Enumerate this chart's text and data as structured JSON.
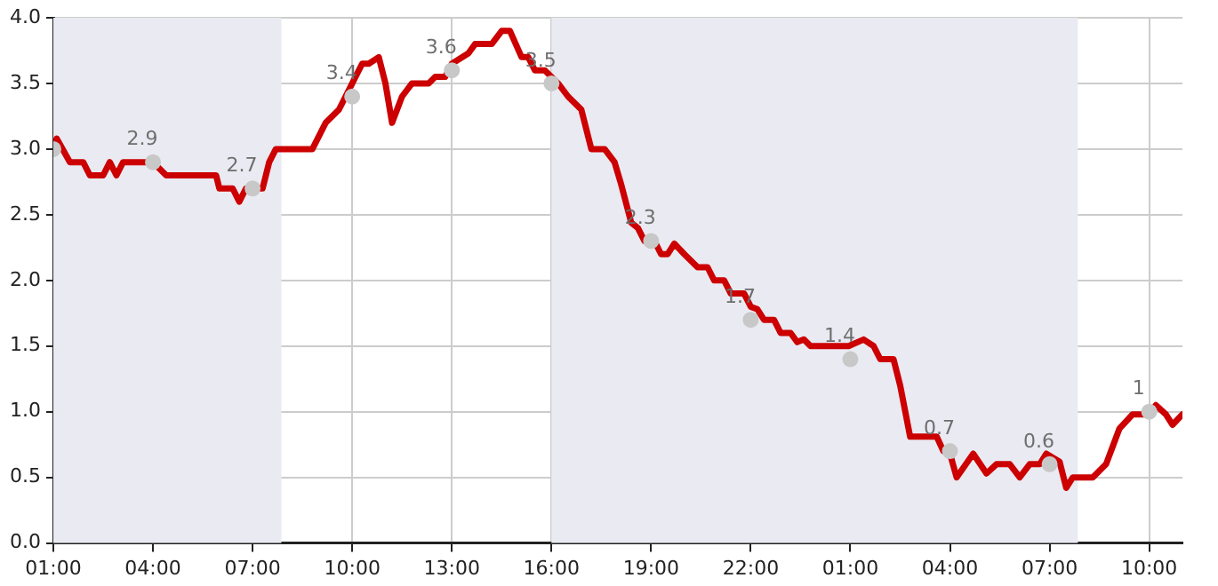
{
  "chart_data": {
    "type": "line",
    "xlim": [
      "--01-01T01:00",
      "--01-02T11:00"
    ],
    "xticks": [
      {
        "value": "--01-01T01:00",
        "label": "01:00"
      },
      {
        "value": "--01-01T04:00",
        "label": "04:00"
      },
      {
        "value": "--01-01T07:00",
        "label": "07:00"
      },
      {
        "value": "--01-01T10:00",
        "label": "10:00"
      },
      {
        "value": "--01-01T13:00",
        "label": "13:00"
      },
      {
        "value": "--01-01T16:00",
        "label": "16:00"
      },
      {
        "value": "--01-01T19:00",
        "label": "19:00"
      },
      {
        "value": "--01-01T22:00",
        "label": "22:00"
      },
      {
        "value": "--01-02T01:00",
        "label": "01:00"
      },
      {
        "value": "--01-02T04:00",
        "label": "04:00"
      },
      {
        "value": "--01-02T07:00",
        "label": "07:00"
      },
      {
        "value": "--01-02T10:00",
        "label": "10:00"
      }
    ],
    "ylim": [
      0,
      4
    ],
    "yticks": [
      {
        "value": 0,
        "label": "0.0"
      },
      0.5,
      {
        "value": 1,
        "label": "1.0"
      },
      1.5,
      {
        "value": 2,
        "label": "2.0"
      },
      2.5,
      {
        "value": 3,
        "label": "3.0"
      },
      3.5,
      {
        "value": 4,
        "label": "4.0"
      }
    ],
    "grid": true,
    "bands": [
      {
        "axis": "x",
        "from": "--01-01T01:00",
        "to": "--01-01T07:52",
        "color": "#eaeaf2"
      },
      {
        "axis": "x",
        "from": "--01-01T16:00",
        "to": "--01-02T07:51",
        "color": "#eaeaf2"
      }
    ],
    "series": [
      {
        "color": "#cc0000",
        "line_style": "solid",
        "x": [
          "--01-01T01:00",
          "--01-01T01:06",
          "--01-01T01:30",
          "--01-01T01:54",
          "--01-01T02:06",
          "--01-01T02:30",
          "--01-01T02:42",
          "--01-01T02:54",
          "--01-01T03:06",
          "--01-01T04:00",
          "--01-01T04:24",
          "--01-01T05:54",
          "--01-01T06:00",
          "--01-01T06:24",
          "--01-01T06:36",
          "--01-01T06:48",
          "--01-01T07:18",
          "--01-01T07:30",
          "--01-01T07:42",
          "--01-01T08:48",
          "--01-01T09:12",
          "--01-01T09:36",
          "--01-01T10:00",
          "--01-01T10:18",
          "--01-01T10:30",
          "--01-01T10:48",
          "--01-01T11:00",
          "--01-01T11:12",
          "--01-01T11:30",
          "--01-01T11:48",
          "--01-01T12:18",
          "--01-01T12:30",
          "--01-01T12:48",
          "--01-01T13:00",
          "--01-01T13:30",
          "--01-01T13:42",
          "--01-01T14:12",
          "--01-01T14:30",
          "--01-01T14:45",
          "--01-01T15:06",
          "--01-01T15:18",
          "--01-01T15:30",
          "--01-01T15:48",
          "--01-01T16:12",
          "--01-01T16:30",
          "--01-01T16:54",
          "--01-01T17:12",
          "--01-01T17:36",
          "--01-01T17:54",
          "--01-01T18:06",
          "--01-01T18:24",
          "--01-01T18:36",
          "--01-01T18:48",
          "--01-01T19:06",
          "--01-01T19:18",
          "--01-01T19:30",
          "--01-01T19:42",
          "--01-01T20:00",
          "--01-01T20:24",
          "--01-01T20:42",
          "--01-01T20:54",
          "--01-01T21:12",
          "--01-01T21:24",
          "--01-01T21:48",
          "--01-01T22:00",
          "--01-01T22:12",
          "--01-01T22:24",
          "--01-01T22:42",
          "--01-01T22:54",
          "--01-01T23:12",
          "--01-01T23:24",
          "--01-01T23:36",
          "--01-01T23:48",
          "--01-02T00:57",
          "--01-02T01:24",
          "--01-02T01:42",
          "--01-02T01:54",
          "--01-02T02:18",
          "--01-02T02:30",
          "--01-02T02:48",
          "--01-02T03:36",
          "--01-02T03:48",
          "--01-02T04:00",
          "--01-02T04:12",
          "--01-02T04:42",
          "--01-02T05:06",
          "--01-02T05:24",
          "--01-02T05:48",
          "--01-02T06:06",
          "--01-02T06:24",
          "--01-02T06:42",
          "--01-02T06:54",
          "--01-02T07:18",
          "--01-02T07:30",
          "--01-02T07:42",
          "--01-02T08:18",
          "--01-02T08:42",
          "--01-02T09:06",
          "--01-02T09:30",
          "--01-02T10:00",
          "--01-02T10:12",
          "--01-02T10:30",
          "--01-02T10:42",
          "--01-02T11:00"
        ],
        "values": [
          3.0,
          3.08,
          2.9,
          2.9,
          2.8,
          2.8,
          2.9,
          2.8,
          2.9,
          2.9,
          2.8,
          2.8,
          2.7,
          2.7,
          2.6,
          2.7,
          2.7,
          2.9,
          3.0,
          3.0,
          3.2,
          3.3,
          3.5,
          3.65,
          3.65,
          3.7,
          3.5,
          3.2,
          3.4,
          3.5,
          3.5,
          3.55,
          3.55,
          3.65,
          3.73,
          3.8,
          3.8,
          3.9,
          3.9,
          3.7,
          3.7,
          3.6,
          3.6,
          3.5,
          3.4,
          3.3,
          3.0,
          3.0,
          2.9,
          2.73,
          2.44,
          2.4,
          2.3,
          2.3,
          2.2,
          2.2,
          2.28,
          2.2,
          2.1,
          2.1,
          2.0,
          2.0,
          1.9,
          1.9,
          1.8,
          1.78,
          1.7,
          1.7,
          1.6,
          1.6,
          1.53,
          1.55,
          1.5,
          1.5,
          1.55,
          1.5,
          1.4,
          1.4,
          1.2,
          0.81,
          0.81,
          0.7,
          0.68,
          0.5,
          0.68,
          0.53,
          0.6,
          0.6,
          0.5,
          0.6,
          0.6,
          0.68,
          0.62,
          0.42,
          0.5,
          0.5,
          0.6,
          0.87,
          0.98,
          0.98,
          1.05,
          0.98,
          0.9,
          0.98
        ]
      },
      {
        "type": "scatter",
        "color": "#c8c8c8",
        "marker": "circle",
        "x": [
          "--01-01T01:00",
          "--01-01T04:00",
          "--01-01T07:00",
          "--01-01T10:00",
          "--01-01T13:00",
          "--01-01T16:00",
          "--01-01T19:00",
          "--01-01T22:00",
          "--01-02T01:00",
          "--01-02T04:00",
          "--01-02T07:00",
          "--01-02T10:00"
        ],
        "values": [
          3.0,
          2.9,
          2.7,
          3.4,
          3.6,
          3.5,
          2.3,
          1.7,
          1.4,
          0.7,
          0.6,
          1
        ],
        "value_labels": [
          null,
          "2.9",
          "2.7",
          "3.4",
          "3.6",
          "3.5",
          "2.3",
          "1.7",
          "1.4",
          "0.7",
          "0.6",
          "1"
        ]
      }
    ]
  }
}
